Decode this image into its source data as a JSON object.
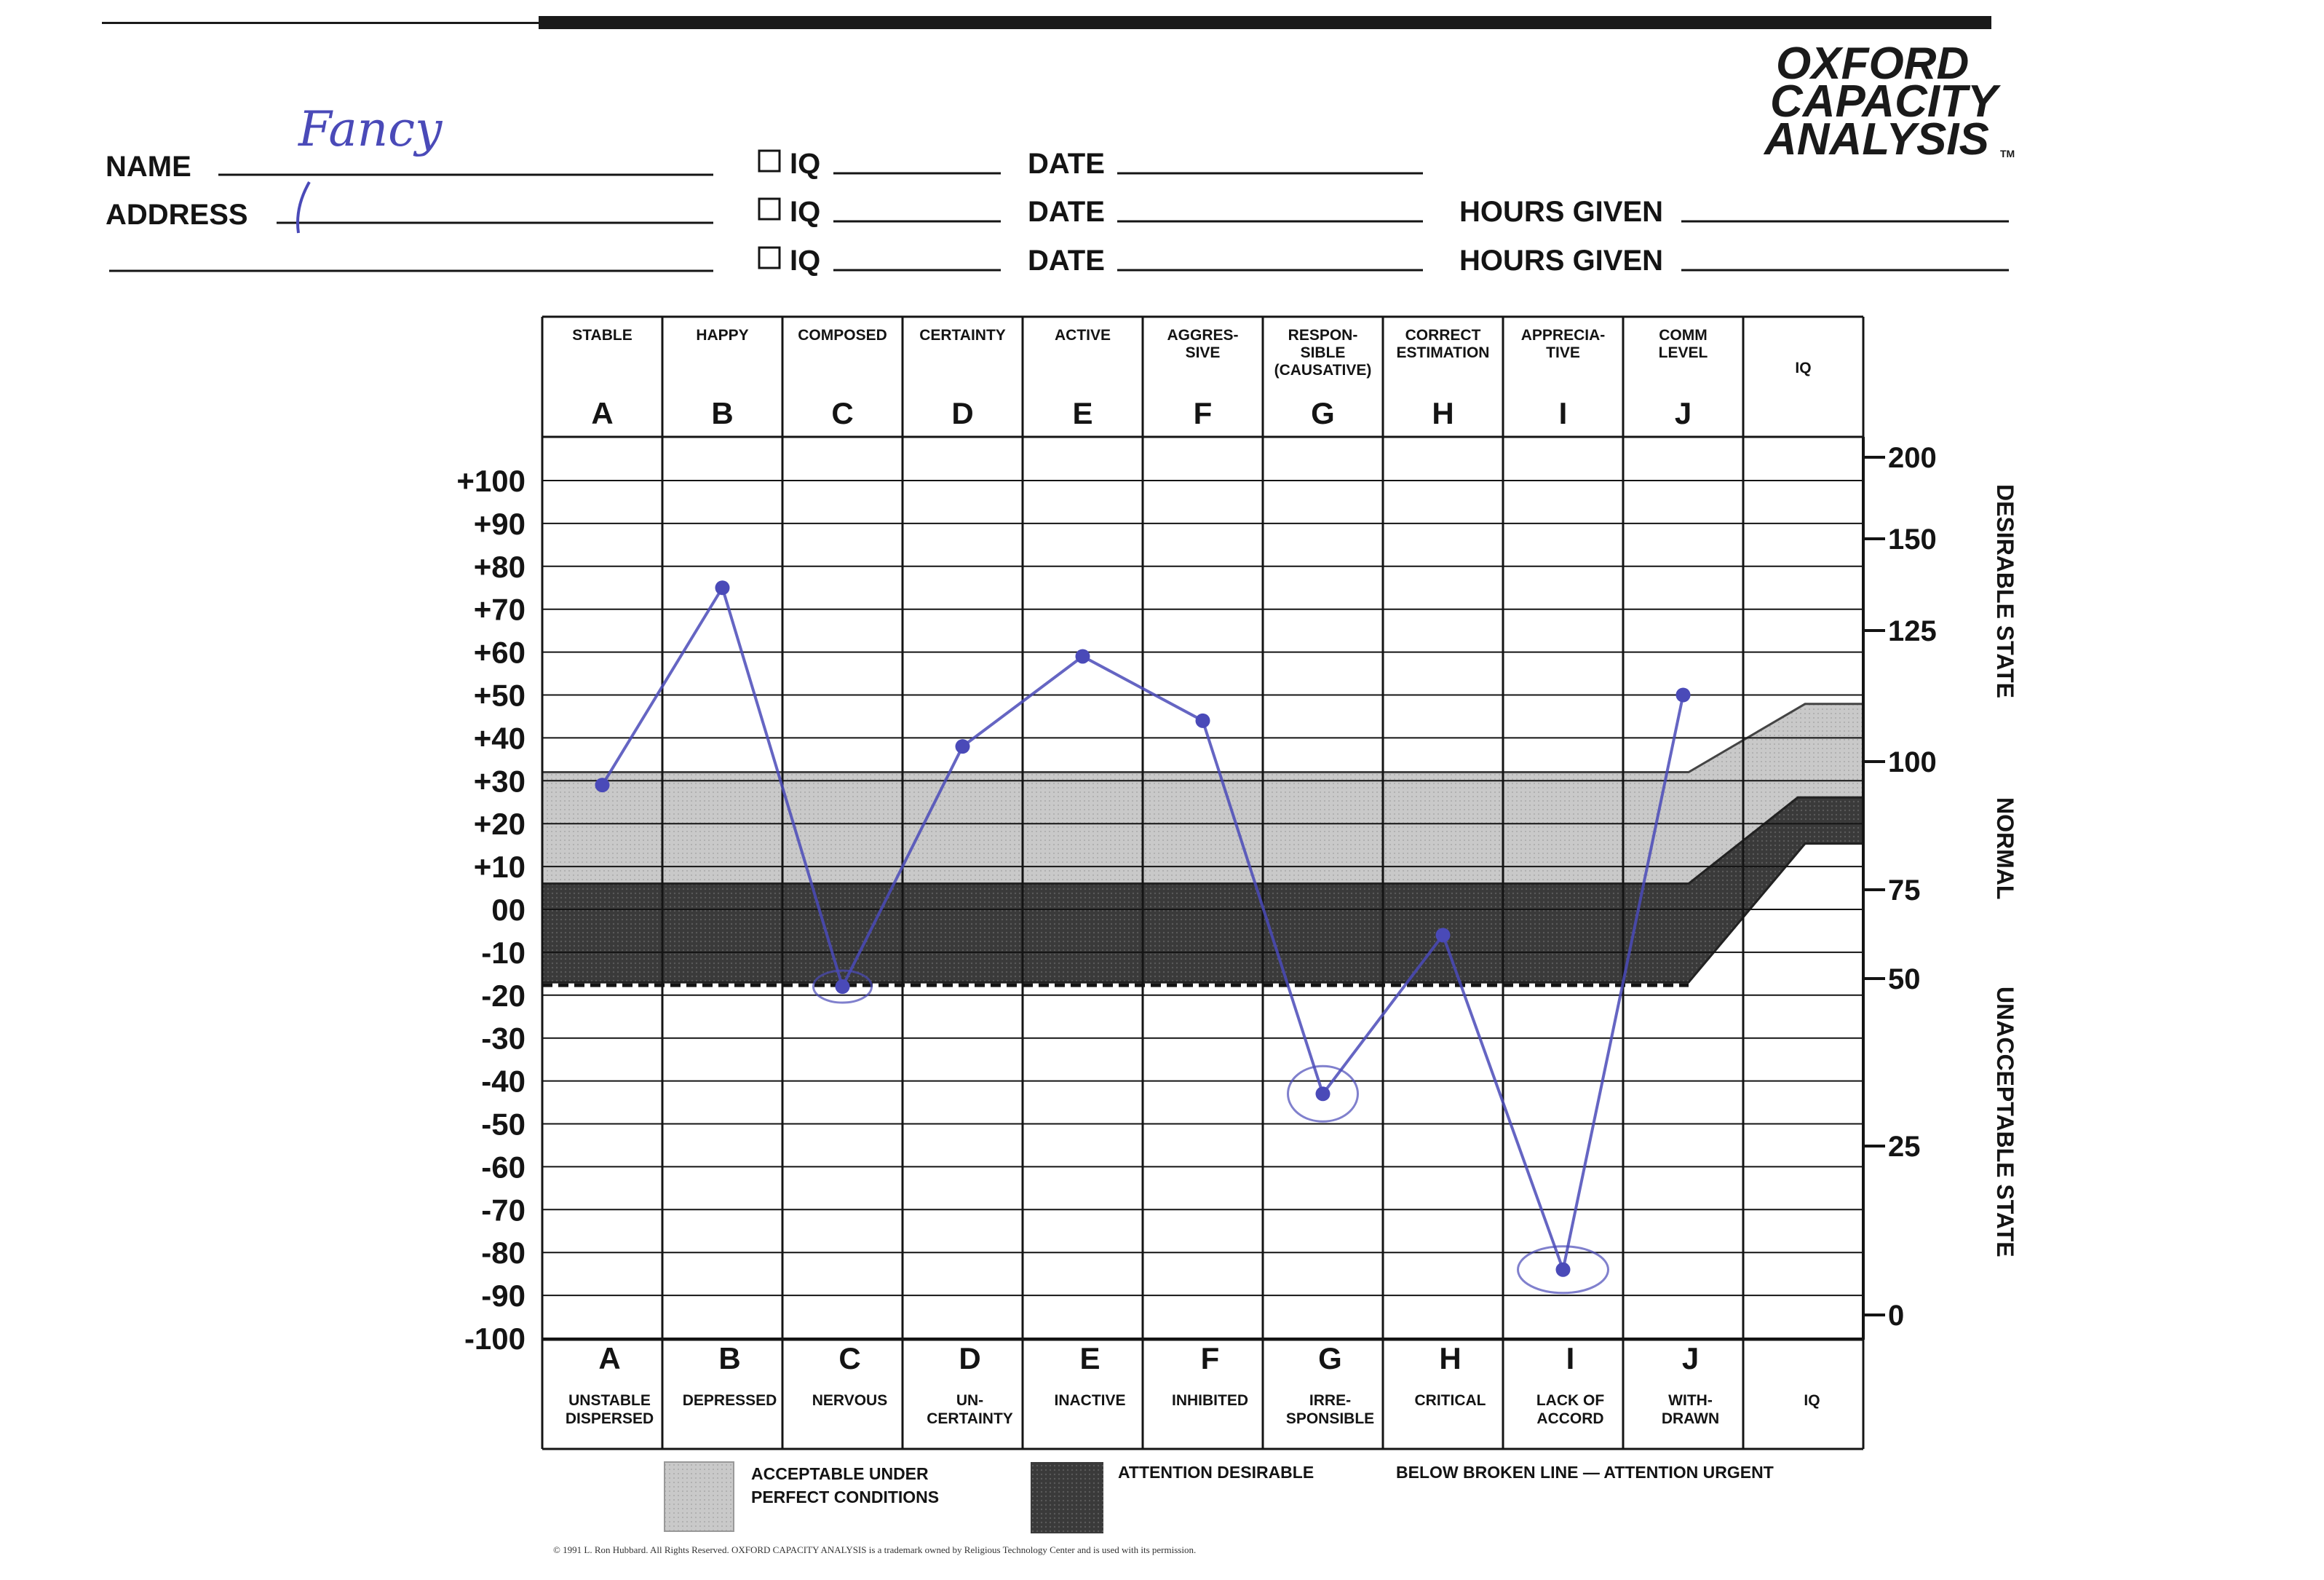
{
  "header": {
    "logo_line1": "OXFORD",
    "logo_line2": "CAPACITY",
    "logo_line3": "ANALYSIS",
    "logo_tm": "TM",
    "name_label": "NAME",
    "name_value": "Fancy",
    "address_label": "ADDRESS",
    "iq_label": "IQ",
    "date_label": "DATE",
    "hours_label": "HOURS GIVEN"
  },
  "chart_data": {
    "type": "line",
    "columns": [
      {
        "letter": "A",
        "top": [
          "STABLE"
        ],
        "bottom": [
          "UNSTABLE",
          "DISPERSED"
        ]
      },
      {
        "letter": "B",
        "top": [
          "HAPPY"
        ],
        "bottom": [
          "DEPRESSED"
        ]
      },
      {
        "letter": "C",
        "top": [
          "COMPOSED"
        ],
        "bottom": [
          "NERVOUS"
        ]
      },
      {
        "letter": "D",
        "top": [
          "CERTAINTY"
        ],
        "bottom": [
          "UN-",
          "CERTAINTY"
        ]
      },
      {
        "letter": "E",
        "top": [
          "ACTIVE"
        ],
        "bottom": [
          "INACTIVE"
        ]
      },
      {
        "letter": "F",
        "top": [
          "AGGRES-",
          "SIVE"
        ],
        "bottom": [
          "INHIBITED"
        ]
      },
      {
        "letter": "G",
        "top": [
          "RESPON-",
          "SIBLE",
          "(CAUSATIVE)"
        ],
        "bottom": [
          "IRRE-",
          "SPONSIBLE"
        ]
      },
      {
        "letter": "H",
        "top": [
          "CORRECT",
          "ESTIMATION"
        ],
        "bottom": [
          "CRITICAL"
        ]
      },
      {
        "letter": "I",
        "top": [
          "APPRECIA-",
          "TIVE"
        ],
        "bottom": [
          "LACK OF",
          "ACCORD"
        ]
      },
      {
        "letter": "J",
        "top": [
          "COMM",
          "LEVEL"
        ],
        "bottom": [
          "WITH-",
          "DRAWN"
        ]
      }
    ],
    "iq_column_label": "IQ",
    "y_ticks": [
      "+100",
      "+90",
      "+80",
      "+70",
      "+60",
      "+50",
      "+40",
      "+30",
      "+20",
      "+10",
      "00",
      "-10",
      "-20",
      "-30",
      "-40",
      "-50",
      "-60",
      "-70",
      "-80",
      "-90",
      "-100"
    ],
    "ylim": [
      -100,
      100
    ],
    "series": [
      {
        "values": [
          29,
          75,
          -18,
          38,
          59,
          44,
          -43,
          -6,
          -84,
          50
        ]
      }
    ],
    "iq_scale": {
      "ticks": [
        "200",
        "150",
        "125",
        "100",
        "75",
        "50",
        "25",
        "0"
      ],
      "tick_values": [
        200,
        150,
        125,
        100,
        75,
        50,
        25,
        0
      ]
    },
    "bands": {
      "light_range": [
        6,
        32
      ],
      "dark_range": [
        -17,
        6
      ]
    },
    "right_labels": [
      "DESIRABLE STATE",
      "NORMAL",
      "UNACCEPTABLE STATE"
    ],
    "legend": {
      "light_label_line1": "ACCEPTABLE UNDER",
      "light_label_line2": "PERFECT CONDITIONS",
      "dark_label": "ATTENTION DESIRABLE",
      "broken_label": "BELOW BROKEN LINE — ATTENTION URGENT"
    },
    "footer": "© 1991 L. Ron Hubbard. All Rights Reserved. OXFORD CAPACITY ANALYSIS is a trademark owned by Religious Technology Center and is used with its permission.",
    "colors": {
      "pen": "#4a4ab8",
      "light_band": "#c7c7c7",
      "dark_band": "#3c3c3c",
      "ink": "#141414"
    }
  }
}
